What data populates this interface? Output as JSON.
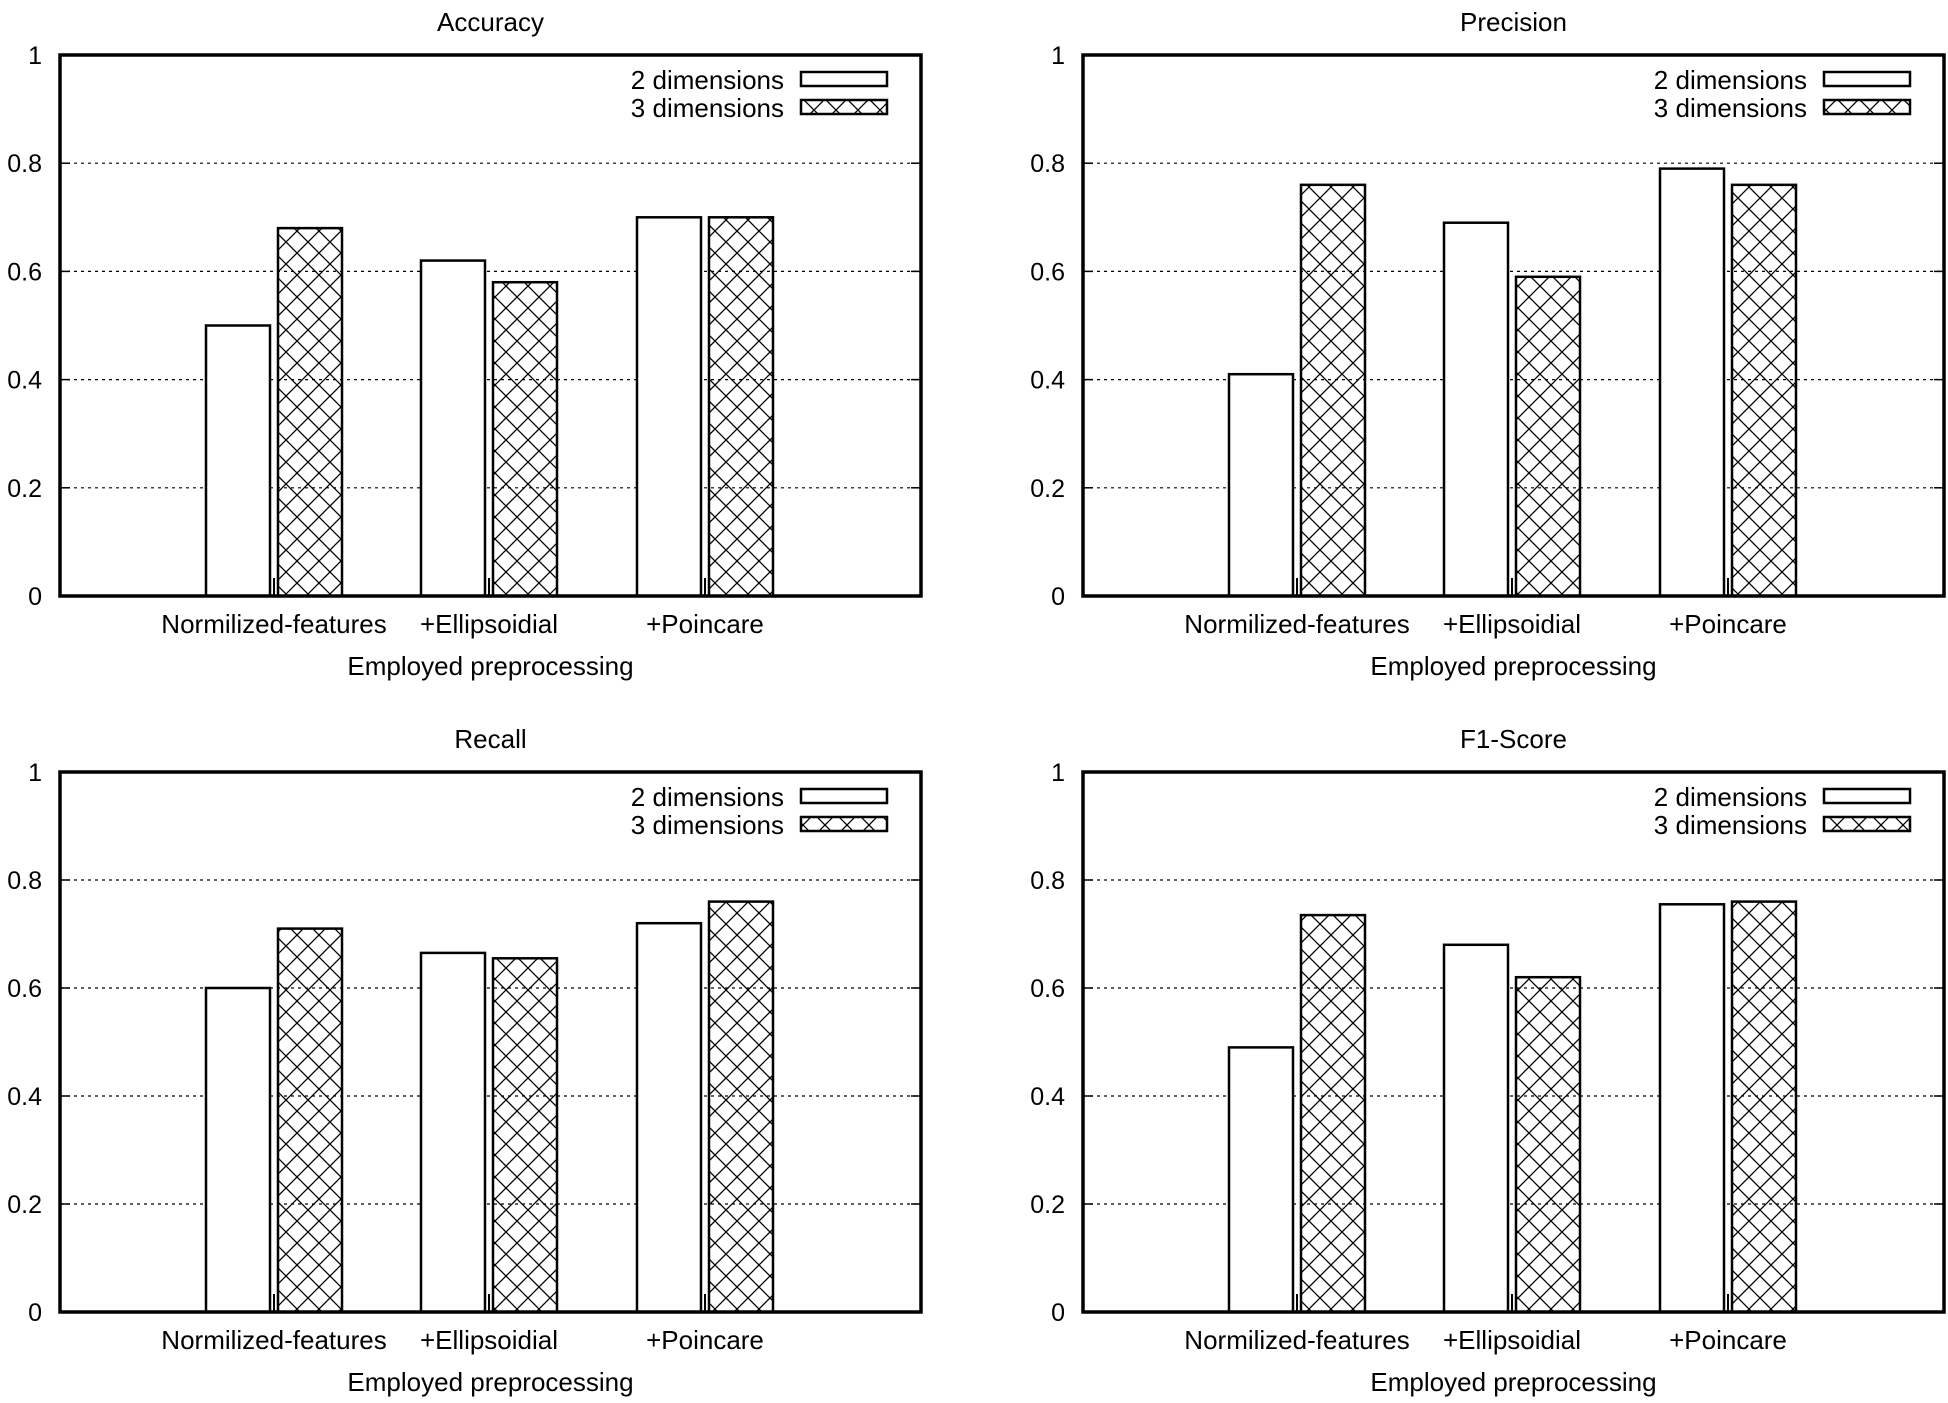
{
  "chart_data": [
    {
      "type": "bar",
      "title": "Accuracy",
      "xlabel": "Employed preprocessing",
      "ylabel": "",
      "categories": [
        "Normilized-features",
        "+Ellipsoidial",
        "+Poincare"
      ],
      "ylim": [
        0,
        1
      ],
      "yticks": [
        "0",
        "0.2",
        "0.4",
        "0.6",
        "0.8",
        "1"
      ],
      "grid": true,
      "legend_position": "top-right",
      "series": [
        {
          "name": "2 dimensions",
          "pattern": "empty",
          "values": [
            0.5,
            0.62,
            0.7
          ]
        },
        {
          "name": "3 dimensions",
          "pattern": "crosshatch",
          "values": [
            0.68,
            0.58,
            0.7
          ]
        }
      ]
    },
    {
      "type": "bar",
      "title": "Precision",
      "xlabel": "Employed preprocessing",
      "ylabel": "",
      "categories": [
        "Normilized-features",
        "+Ellipsoidial",
        "+Poincare"
      ],
      "ylim": [
        0,
        1
      ],
      "yticks": [
        "0",
        "0.2",
        "0.4",
        "0.6",
        "0.8",
        "1"
      ],
      "grid": true,
      "legend_position": "top-right",
      "series": [
        {
          "name": "2 dimensions",
          "pattern": "empty",
          "values": [
            0.41,
            0.69,
            0.79
          ]
        },
        {
          "name": "3 dimensions",
          "pattern": "crosshatch",
          "values": [
            0.76,
            0.59,
            0.76
          ]
        }
      ]
    },
    {
      "type": "bar",
      "title": "Recall",
      "xlabel": "Employed preprocessing",
      "ylabel": "",
      "categories": [
        "Normilized-features",
        "+Ellipsoidial",
        "+Poincare"
      ],
      "ylim": [
        0,
        1
      ],
      "yticks": [
        "0",
        "0.2",
        "0.4",
        "0.6",
        "0.8",
        "1"
      ],
      "grid": true,
      "legend_position": "top-right",
      "series": [
        {
          "name": "2 dimensions",
          "pattern": "empty",
          "values": [
            0.6,
            0.665,
            0.72
          ]
        },
        {
          "name": "3 dimensions",
          "pattern": "crosshatch",
          "values": [
            0.71,
            0.655,
            0.76
          ]
        }
      ]
    },
    {
      "type": "bar",
      "title": "F1-Score",
      "xlabel": "Employed preprocessing",
      "ylabel": "",
      "categories": [
        "Normilized-features",
        "+Ellipsoidial",
        "+Poincare"
      ],
      "ylim": [
        0,
        1
      ],
      "yticks": [
        "0",
        "0.2",
        "0.4",
        "0.6",
        "0.8",
        "1"
      ],
      "grid": true,
      "legend_position": "top-right",
      "series": [
        {
          "name": "2 dimensions",
          "pattern": "empty",
          "values": [
            0.49,
            0.68,
            0.755
          ]
        },
        {
          "name": "3 dimensions",
          "pattern": "crosshatch",
          "values": [
            0.735,
            0.62,
            0.76
          ]
        }
      ]
    }
  ]
}
